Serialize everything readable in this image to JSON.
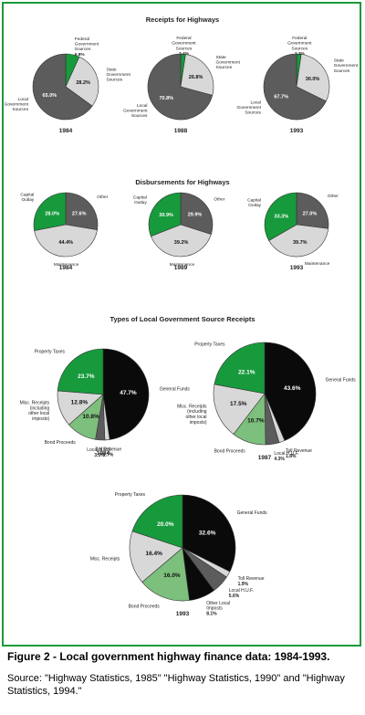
{
  "colors": {
    "green": "#179a3c",
    "dark": "#5c5c5c",
    "light": "#d8d8d8",
    "black": "#0a0a0a",
    "lightgreen": "#7dbf7d",
    "border": "#1a9a3a"
  },
  "caption": "Figure 2 - Local government highway finance data: 1984-1993.",
  "source": "Source: \"Highway Statistics, 1985\" \"Highway Statistics, 1990\" and \"Highway Statistics, 1994.\"",
  "chart_data": [
    {
      "type": "pie",
      "title": "Receipts for Highways",
      "charts": [
        {
          "year": "1984",
          "slices": [
            {
              "label": "Federal Government Sources",
              "value": 6.8,
              "value_label": "6.8%",
              "color": "green"
            },
            {
              "label": "State Government Sources",
              "value": 28.2,
              "value_label": "28.2%",
              "color": "light"
            },
            {
              "label": "Local Government Sources",
              "value": 65.0,
              "value_label": "65.0%",
              "color": "dark"
            }
          ]
        },
        {
          "year": "1988",
          "slices": [
            {
              "label": "Federal Government Sources",
              "value": 2.4,
              "value_label": "2.4%",
              "color": "green"
            },
            {
              "label": "State Government Sources",
              "value": 26.8,
              "value_label": "26.8%",
              "color": "light"
            },
            {
              "label": "Local Government Sources",
              "value": 70.8,
              "value_label": "70.8%",
              "color": "dark"
            }
          ]
        },
        {
          "year": "1993",
          "slices": [
            {
              "label": "Federal Government Sources",
              "value": 2.3,
              "value_label": "2.3%",
              "color": "green"
            },
            {
              "label": "State Government Sources",
              "value": 30.0,
              "value_label": "30.0%",
              "color": "light"
            },
            {
              "label": "Local Government Sources",
              "value": 67.7,
              "value_label": "67.7%",
              "color": "dark"
            }
          ]
        }
      ]
    },
    {
      "type": "pie",
      "title": "Disbursements for Highways",
      "charts": [
        {
          "year": "1984",
          "slices": [
            {
              "label": "Other",
              "value": 27.6,
              "value_label": "27.6%",
              "color": "dark"
            },
            {
              "label": "Maintenance",
              "value": 44.4,
              "value_label": "44.4%",
              "color": "light"
            },
            {
              "label": "Capital Outlay",
              "value": 28.0,
              "value_label": "28.0%",
              "color": "green"
            }
          ]
        },
        {
          "year": "1989",
          "slices": [
            {
              "label": "Other",
              "value": 29.9,
              "value_label": "29.9%",
              "color": "dark"
            },
            {
              "label": "Maintenance",
              "value": 39.2,
              "value_label": "39.2%",
              "color": "light"
            },
            {
              "label": "Capital Outlay",
              "value": 30.9,
              "value_label": "30.9%",
              "color": "green"
            }
          ]
        },
        {
          "year": "1993",
          "slices": [
            {
              "label": "Other",
              "value": 27.0,
              "value_label": "27.0%",
              "color": "dark"
            },
            {
              "label": "Maintenance",
              "value": 39.7,
              "value_label": "39.7%",
              "color": "light"
            },
            {
              "label": "Capital Outlay",
              "value": 33.3,
              "value_label": "33.3%",
              "color": "green"
            }
          ]
        }
      ]
    },
    {
      "type": "pie",
      "title": "Types of Local Government Source Receipts",
      "charts": [
        {
          "year": "1984",
          "slices": [
            {
              "label": "General Funds",
              "value": 47.7,
              "value_label": "47.7%",
              "color": "black"
            },
            {
              "label": "Toll Revenue",
              "value": 1.7,
              "value_label": "1.7%",
              "color": "light"
            },
            {
              "label": "Local H.U.F.",
              "value": 3.3,
              "value_label": "3.3%",
              "color": "dark"
            },
            {
              "label": "Bond Proceeds",
              "value": 10.8,
              "value_label": "10.8%",
              "color": "lightgreen"
            },
            {
              "label": "Misc. Receipts (including other local imposts)",
              "value": 12.8,
              "value_label": "12.8%",
              "color": "light"
            },
            {
              "label": "Property Taxes",
              "value": 23.7,
              "value_label": "23.7%",
              "color": "green"
            }
          ]
        },
        {
          "year": "1987",
          "slices": [
            {
              "label": "General Funds",
              "value": 43.6,
              "value_label": "43.6%",
              "color": "black"
            },
            {
              "label": "Toll Revenue",
              "value": 1.8,
              "value_label": "1.8%",
              "color": "light"
            },
            {
              "label": "Local H.U.F.",
              "value": 4.3,
              "value_label": "4.3%",
              "color": "dark"
            },
            {
              "label": "Bond Proceeds",
              "value": 10.7,
              "value_label": "10.7%",
              "color": "lightgreen"
            },
            {
              "label": "Misc. Receipts (including other local imposts)",
              "value": 17.5,
              "value_label": "17.5%",
              "color": "light"
            },
            {
              "label": "Property Taxes",
              "value": 22.1,
              "value_label": "22.1%",
              "color": "green"
            }
          ]
        },
        {
          "year": "1993",
          "slices": [
            {
              "label": "General Funds",
              "value": 32.6,
              "value_label": "32.6%",
              "color": "black"
            },
            {
              "label": "Toll Revenue",
              "value": 1.9,
              "value_label": "1.9%",
              "color": "light"
            },
            {
              "label": "Local H.U.F.",
              "value": 5.6,
              "value_label": "5.6%",
              "color": "dark"
            },
            {
              "label": "Other Local Imposts",
              "value": 8.1,
              "value_label": "8.1%",
              "color": "black"
            },
            {
              "label": "Bond Proceeds",
              "value": 16.0,
              "value_label": "16.0%",
              "color": "lightgreen"
            },
            {
              "label": "Misc. Receipts",
              "value": 16.4,
              "value_label": "16.4%",
              "color": "light"
            },
            {
              "label": "Property Taxes",
              "value": 20.0,
              "value_label": "20.0%",
              "color": "green"
            }
          ]
        }
      ]
    }
  ]
}
